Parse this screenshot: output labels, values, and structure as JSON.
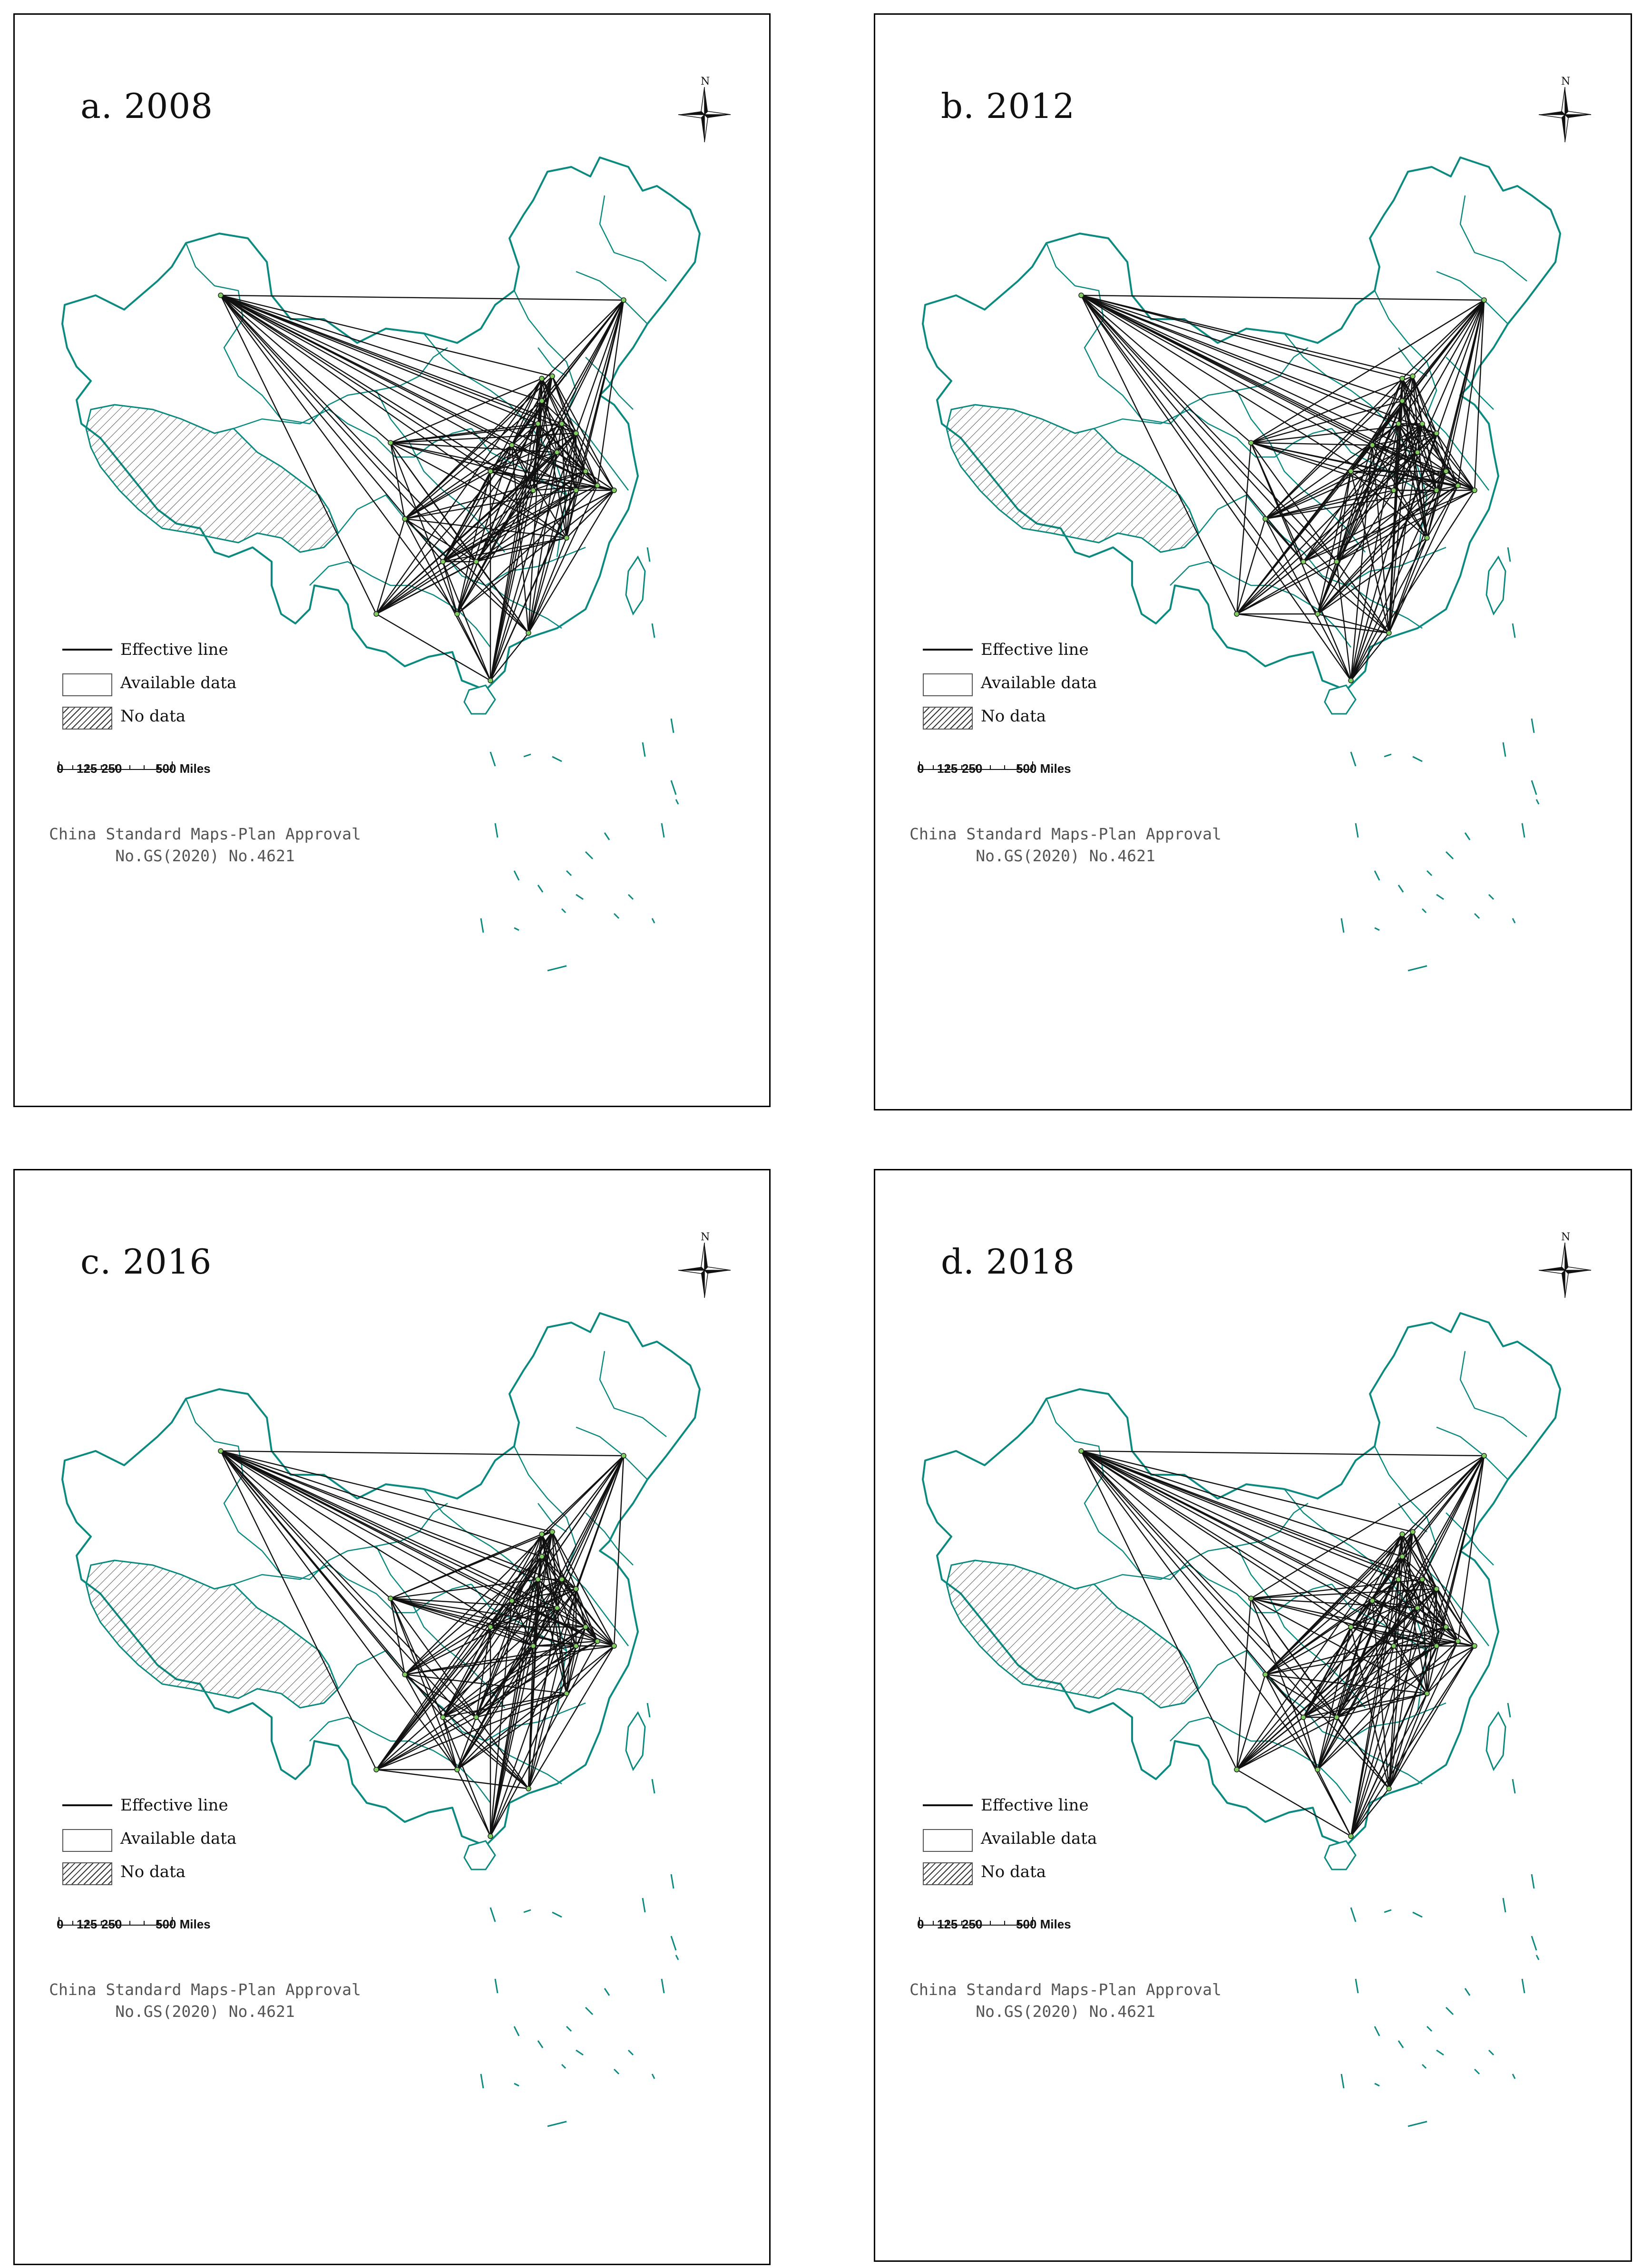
{
  "panels": [
    {
      "title": "a. 2008"
    },
    {
      "title": "b. 2012"
    },
    {
      "title": "c. 2016"
    },
    {
      "title": "d. 2018"
    }
  ],
  "legend": {
    "effective_line": "Effective line",
    "available_data": "Available data",
    "no_data": "No data"
  },
  "scale": {
    "label_0": "0",
    "label_125": "125",
    "label_250": "250",
    "label_500": "500 Miles"
  },
  "approval": {
    "line1": "China Standard Maps-Plan Approval",
    "line2": "No.GS(2020) No.4621"
  },
  "north_arrow": {
    "label": "N"
  },
  "colors": {
    "boundary": "#0d8a80",
    "no_data_hatch": "#333333",
    "network": "#111111",
    "node": "#7fd060"
  }
}
